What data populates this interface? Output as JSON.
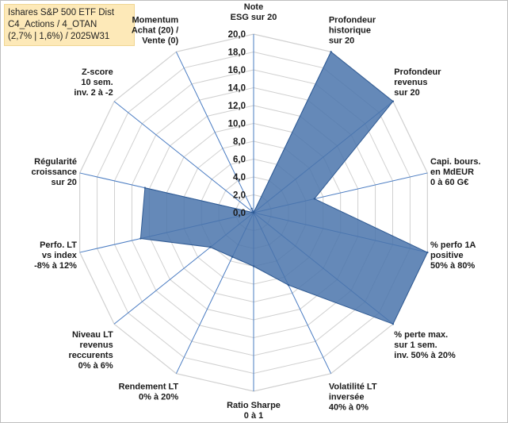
{
  "title_lines": [
    "Ishares S&P 500 ETF Dist",
    "C4_Actions / 4_OTAN",
    "(2,7% | 1,6%) / 2025W31"
  ],
  "chart_data": {
    "type": "radar",
    "rlim": [
      0,
      20
    ],
    "ticks": [
      "0,0",
      "2,0",
      "4,0",
      "6,0",
      "8,0",
      "10,0",
      "12,0",
      "14,0",
      "16,0",
      "18,0",
      "20,0"
    ],
    "grid": true,
    "axes": [
      {
        "lines": [
          "Note",
          "ESG sur 20"
        ]
      },
      {
        "lines": [
          "Profondeur",
          "historique",
          "sur 20"
        ]
      },
      {
        "lines": [
          "Profondeur",
          "revenus",
          "sur 20"
        ]
      },
      {
        "lines": [
          "Capi. bours.",
          "en MdEUR",
          "0 à 60 G€"
        ]
      },
      {
        "lines": [
          "% perfo 1A",
          "positive",
          "50% à 80%"
        ]
      },
      {
        "lines": [
          "% perte max.",
          "sur 1 sem.",
          "inv. 50% à 20%"
        ]
      },
      {
        "lines": [
          "Volatilité LT",
          "inversée",
          "40% à 0%"
        ]
      },
      {
        "lines": [
          "Ratio Sharpe",
          "0 à 1"
        ]
      },
      {
        "lines": [
          "Rendement LT",
          "0% à 20%"
        ]
      },
      {
        "lines": [
          "Niveau LT",
          "revenus",
          "reccurents",
          "0% à 6%"
        ]
      },
      {
        "lines": [
          "Perfo. LT",
          "vs index",
          "-8% à 12%"
        ]
      },
      {
        "lines": [
          "Régularité",
          "croissance",
          "sur 20"
        ]
      },
      {
        "lines": [
          "Z-score",
          "10 sem.",
          "inv. 2 à -2"
        ]
      },
      {
        "lines": [
          "Momentum",
          "Achat (20) /",
          "Vente (0)"
        ]
      }
    ],
    "series": [
      {
        "values": [
          0.0,
          20.0,
          20.0,
          7.0,
          20.0,
          20.0,
          9.0,
          6.0,
          5.5,
          6.2,
          13.0,
          12.5,
          0.0,
          0.5
        ]
      }
    ],
    "colors": {
      "fill": "#4a74ab",
      "stroke": "#2f5a93",
      "grid": "#d0d0d0",
      "spoke": "#4a7cc2"
    }
  }
}
